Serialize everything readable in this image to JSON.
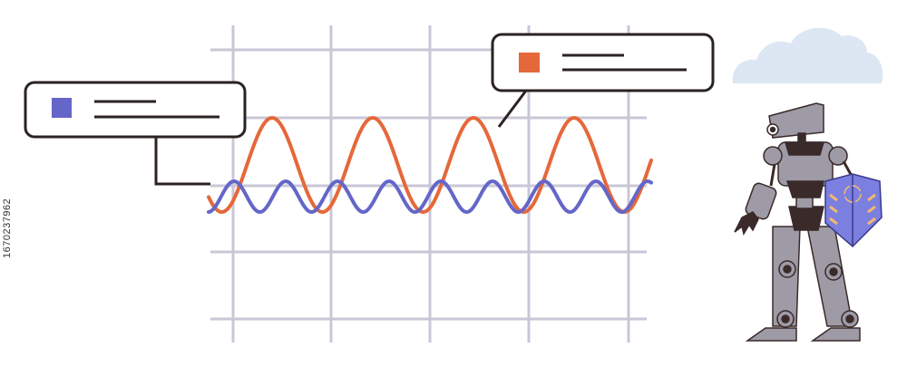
{
  "illustration": {
    "colors": {
      "grid": "#c9c7d6",
      "wave_primary": "#e5683a",
      "wave_secondary": "#6466c8",
      "outline": "#2b2222",
      "cloud": "#dde6f3",
      "robot_body": "#9e9aa6",
      "robot_dark": "#3a2a2a",
      "shield": "#7b7fe0",
      "shield_stripes": "#f2b872"
    },
    "legend_callouts": [
      {
        "marker_color": "#6466c8",
        "marker_icon": "square-icon"
      },
      {
        "marker_color": "#e5683a",
        "marker_icon": "square-icon"
      }
    ],
    "icons": [
      "cloud-icon",
      "robot-icon",
      "shield-icon"
    ]
  },
  "watermark": {
    "id": "1670237962"
  }
}
